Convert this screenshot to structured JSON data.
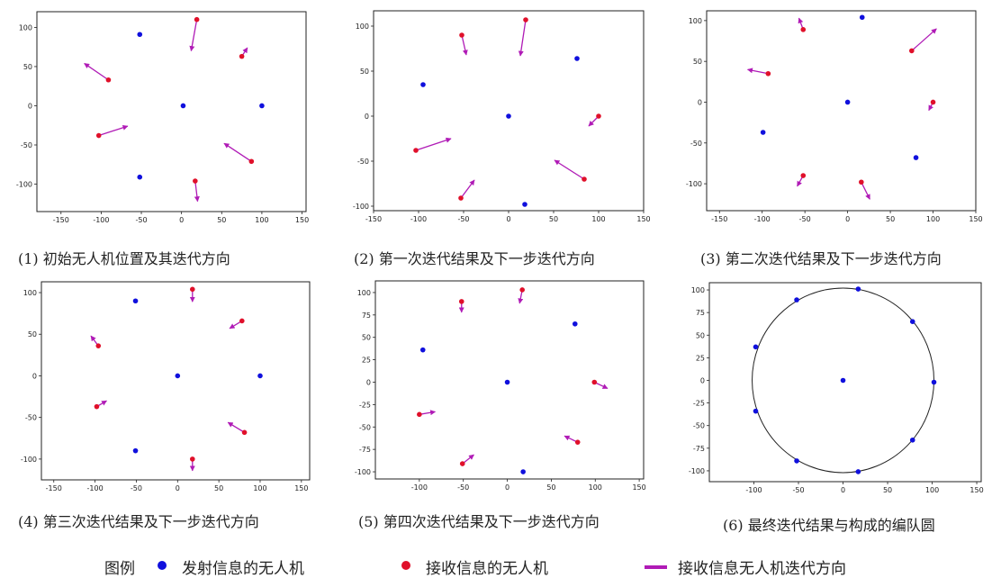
{
  "colors": {
    "transmitter": "#1010dd",
    "receiver": "#e0102a",
    "arrow": "#b01bb6",
    "axes": "#222222"
  },
  "legend": {
    "title": "图例",
    "transmitter_label": "发射信息的无人机",
    "receiver_label": "接收信息的无人机",
    "arrow_label": "接收信息无人机迭代方向"
  },
  "chart_data": [
    {
      "type": "scatter",
      "caption": "(1) 初始无人机位置及其迭代方向",
      "xlim": [
        -180,
        155
      ],
      "ylim": [
        -135,
        120
      ],
      "xticks": [
        -150,
        -100,
        -50,
        0,
        50,
        100,
        150
      ],
      "yticks": [
        -100,
        -50,
        0,
        50,
        100
      ],
      "transmitters": [
        [
          -52,
          91
        ],
        [
          2,
          0
        ],
        [
          100,
          0
        ],
        [
          -52,
          -91
        ]
      ],
      "receivers": [
        [
          19,
          110
        ],
        [
          75,
          63
        ],
        [
          -91,
          33
        ],
        [
          -103,
          -38
        ],
        [
          87,
          -71
        ],
        [
          17,
          -96
        ]
      ],
      "arrows": [
        [
          [
            19,
            110
          ],
          [
            12,
            70
          ]
        ],
        [
          [
            75,
            63
          ],
          [
            82,
            74
          ]
        ],
        [
          [
            -91,
            33
          ],
          [
            -121,
            54
          ]
        ],
        [
          [
            -103,
            -38
          ],
          [
            -67,
            -26
          ]
        ],
        [
          [
            87,
            -71
          ],
          [
            53,
            -48
          ]
        ],
        [
          [
            17,
            -96
          ],
          [
            20,
            -122
          ]
        ]
      ]
    },
    {
      "type": "scatter",
      "caption": "(2) 第一次迭代结果及下一步迭代方向",
      "xlim": [
        -150,
        150
      ],
      "ylim": [
        -105,
        117
      ],
      "xticks": [
        -150,
        -100,
        -50,
        0,
        50,
        100,
        150
      ],
      "yticks": [
        -100,
        -50,
        0,
        50,
        100
      ],
      "transmitters": [
        [
          -95,
          35
        ],
        [
          0,
          0
        ],
        [
          76,
          64
        ],
        [
          18,
          -98
        ]
      ],
      "receivers": [
        [
          19,
          107
        ],
        [
          -52,
          90
        ],
        [
          100,
          0
        ],
        [
          -103,
          -38
        ],
        [
          84,
          -70
        ],
        [
          -53,
          -91
        ]
      ],
      "arrows": [
        [
          [
            19,
            107
          ],
          [
            13,
            67
          ]
        ],
        [
          [
            -52,
            90
          ],
          [
            -47,
            68
          ]
        ],
        [
          [
            100,
            0
          ],
          [
            89,
            -11
          ]
        ],
        [
          [
            -103,
            -38
          ],
          [
            -64,
            -25
          ]
        ],
        [
          [
            84,
            -70
          ],
          [
            51,
            -49
          ]
        ],
        [
          [
            -53,
            -91
          ],
          [
            -38,
            -71
          ]
        ]
      ]
    },
    {
      "type": "scatter",
      "caption": "(3) 第二次迭代结果及下一步迭代方向",
      "xlim": [
        -165,
        150
      ],
      "ylim": [
        -133,
        112
      ],
      "xticks": [
        -150,
        -100,
        -50,
        0,
        50,
        100,
        150
      ],
      "yticks": [
        -100,
        -50,
        0,
        50,
        100
      ],
      "transmitters": [
        [
          17,
          104
        ],
        [
          0,
          0
        ],
        [
          -99,
          -37
        ],
        [
          80,
          -68
        ]
      ],
      "receivers": [
        [
          -52,
          89
        ],
        [
          75,
          63
        ],
        [
          -93,
          35
        ],
        [
          100,
          0
        ],
        [
          -52,
          -90
        ],
        [
          16,
          -98
        ]
      ],
      "arrows": [
        [
          [
            -52,
            89
          ],
          [
            -57,
            103
          ]
        ],
        [
          [
            75,
            63
          ],
          [
            104,
            90
          ]
        ],
        [
          [
            -93,
            35
          ],
          [
            -117,
            40
          ]
        ],
        [
          [
            100,
            0
          ],
          [
            95,
            -10
          ]
        ],
        [
          [
            -52,
            -90
          ],
          [
            -59,
            -103
          ]
        ],
        [
          [
            16,
            -98
          ],
          [
            26,
            -119
          ]
        ]
      ]
    },
    {
      "type": "scatter",
      "caption": "(4) 第三次迭代结果及下一步迭代方向",
      "xlim": [
        -165,
        160
      ],
      "ylim": [
        -125,
        113
      ],
      "xticks": [
        -150,
        -100,
        -50,
        0,
        50,
        100,
        150
      ],
      "yticks": [
        -100,
        -50,
        0,
        50,
        100
      ],
      "transmitters": [
        [
          -51,
          90
        ],
        [
          0,
          0
        ],
        [
          100,
          0
        ],
        [
          -51,
          -90
        ]
      ],
      "receivers": [
        [
          18,
          104
        ],
        [
          78,
          66
        ],
        [
          -96,
          36
        ],
        [
          -98,
          -37
        ],
        [
          81,
          -68
        ],
        [
          18,
          -100
        ]
      ],
      "arrows": [
        [
          [
            18,
            104
          ],
          [
            18,
            89
          ]
        ],
        [
          [
            78,
            66
          ],
          [
            63,
            57
          ]
        ],
        [
          [
            -96,
            36
          ],
          [
            -105,
            48
          ]
        ],
        [
          [
            -98,
            -37
          ],
          [
            -86,
            -30
          ]
        ],
        [
          [
            81,
            -68
          ],
          [
            61,
            -56
          ]
        ],
        [
          [
            18,
            -100
          ],
          [
            18,
            -114
          ]
        ]
      ]
    },
    {
      "type": "scatter",
      "caption": "(5) 第四次迭代结果及下一步迭代方向",
      "xlim": [
        -150,
        155
      ],
      "ylim": [
        -108,
        113
      ],
      "xticks": [
        -100,
        -50,
        0,
        50,
        100,
        150
      ],
      "yticks": [
        -100,
        -75,
        -50,
        -25,
        0,
        25,
        50,
        75,
        100
      ],
      "transmitters": [
        [
          -96,
          36
        ],
        [
          0,
          0
        ],
        [
          77,
          65
        ],
        [
          18,
          -100
        ]
      ],
      "receivers": [
        [
          17,
          103
        ],
        [
          -52,
          90
        ],
        [
          99,
          0
        ],
        [
          -100,
          -36
        ],
        [
          80,
          -67
        ],
        [
          -51,
          -91
        ]
      ],
      "arrows": [
        [
          [
            17,
            103
          ],
          [
            14,
            88
          ]
        ],
        [
          [
            -52,
            90
          ],
          [
            -52,
            78
          ]
        ],
        [
          [
            99,
            0
          ],
          [
            114,
            -7
          ]
        ],
        [
          [
            -100,
            -36
          ],
          [
            -82,
            -33
          ]
        ],
        [
          [
            80,
            -67
          ],
          [
            65,
            -60
          ]
        ],
        [
          [
            -51,
            -91
          ],
          [
            -38,
            -81
          ]
        ]
      ]
    },
    {
      "type": "scatter",
      "caption": "(6) 最终迭代结果与构成的编队圆",
      "xlim": [
        -150,
        155
      ],
      "ylim": [
        -112,
        108
      ],
      "xticks": [
        -100,
        -50,
        0,
        50,
        100,
        150
      ],
      "yticks": [
        -100,
        -75,
        -50,
        -25,
        0,
        25,
        50,
        75,
        100
      ],
      "transmitters": [
        [
          17,
          101
        ],
        [
          -52,
          89
        ],
        [
          78,
          65
        ],
        [
          -98,
          37
        ],
        [
          102,
          -2
        ],
        [
          -98,
          -34
        ],
        [
          78,
          -66
        ],
        [
          -52,
          -89
        ],
        [
          17,
          -101
        ],
        [
          0,
          0
        ]
      ],
      "receivers": [],
      "arrows": [],
      "circle": {
        "cx": 0,
        "cy": 0,
        "r": 102
      }
    }
  ]
}
